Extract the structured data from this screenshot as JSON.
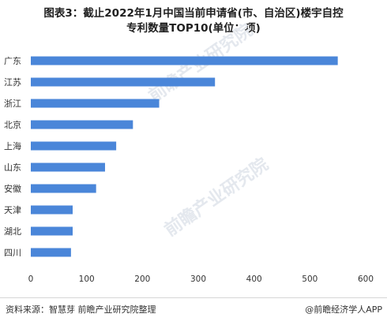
{
  "header": {
    "title_line1": "图表3：截止2022年1月中国当前申请省(市、自治区)楼宇自控",
    "title_line2": "专利数量TOP10(单位：项)"
  },
  "footer": {
    "source": "资料来源：智慧芽 前瞻产业研究院整理",
    "brand": "@前瞻经济学人APP"
  },
  "watermark": {
    "text": "前瞻产业研究院"
  },
  "chart_data": {
    "type": "bar",
    "orientation": "horizontal",
    "categories": [
      "广东",
      "江苏",
      "浙江",
      "北京",
      "上海",
      "山东",
      "安徽",
      "天津",
      "湖北",
      "四川"
    ],
    "values": [
      550,
      330,
      230,
      183,
      153,
      133,
      117,
      75,
      75,
      72
    ],
    "xlim": [
      0,
      600
    ],
    "xticks": [
      0,
      100,
      200,
      300,
      400,
      500,
      600
    ],
    "grid": false,
    "bar_color": "#4a86d9"
  }
}
